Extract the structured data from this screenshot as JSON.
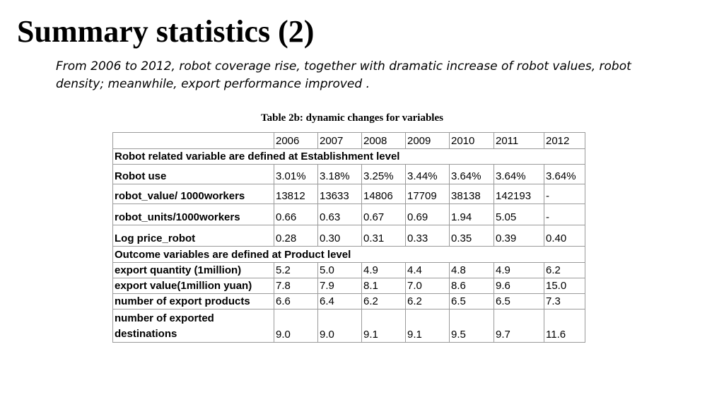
{
  "slide": {
    "title": "Summary statistics (2)",
    "subtitle": "From 2006 to 2012, robot coverage rise, together with dramatic increase of robot values, robot density; meanwhile, export performance improved .",
    "table_caption": "Table 2b: dynamic changes for variables"
  },
  "table": {
    "header": [
      "",
      "2006",
      "2007",
      "2008",
      "2009",
      "2010",
      "2011",
      "2012"
    ],
    "section1": "Robot related variable are defined at Establishment level",
    "rows1": [
      {
        "label": "Robot use",
        "values": [
          "3.01%",
          "3.18%",
          "3.25%",
          "3.44%",
          "3.64%",
          "3.64%",
          "3.64%"
        ]
      },
      {
        "label": "robot_value/ 1000workers",
        "values": [
          "13812",
          "13633",
          "14806",
          "17709",
          "38138",
          "142193",
          "-"
        ]
      },
      {
        "label": "robot_units/1000workers",
        "values": [
          "0.66",
          "0.63",
          "0.67",
          "0.69",
          "1.94",
          "5.05",
          "-"
        ]
      },
      {
        "label": "Log price_robot",
        "values": [
          "0.28",
          "0.30",
          "0.31",
          "0.33",
          "0.35",
          "0.39",
          "0.40"
        ]
      }
    ],
    "section2": "Outcome variables are defined at Product level",
    "rows2": [
      {
        "label": "export quantity (1million)",
        "values": [
          "5.2",
          "5.0",
          "4.9",
          "4.4",
          "4.8",
          "4.9",
          "6.2"
        ]
      },
      {
        "label": "export value(1million yuan)",
        "values": [
          "7.8",
          "7.9",
          "8.1",
          "7.0",
          "8.6",
          "9.6",
          "15.0"
        ]
      },
      {
        "label": "number of export products",
        "values": [
          "6.6",
          "6.4",
          "6.2",
          "6.2",
          "6.5",
          "6.5",
          "7.3"
        ]
      },
      {
        "label": "number of exported destinations",
        "values": [
          "9.0",
          "9.0",
          "9.1",
          "9.1",
          "9.5",
          "9.7",
          "11.6"
        ]
      }
    ]
  }
}
